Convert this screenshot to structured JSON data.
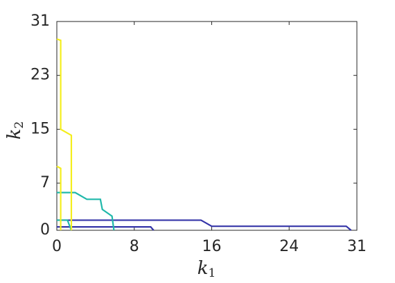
{
  "chart_data": {
    "type": "line",
    "xlabel": {
      "base": "k",
      "sub": "1"
    },
    "ylabel": {
      "base": "k",
      "sub": "2"
    },
    "xlim": [
      0,
      31
    ],
    "ylim": [
      0,
      31
    ],
    "xticks": [
      0,
      8,
      16,
      24,
      31
    ],
    "yticks": [
      0,
      7,
      15,
      23,
      31
    ],
    "series": [
      {
        "color": "#3434a8",
        "x": [
          0,
          9.7,
          10.0
        ],
        "values": [
          0.5,
          0.5,
          0
        ]
      },
      {
        "color": "#3434a8",
        "x": [
          0,
          14.9,
          16.0,
          29.9,
          30.4
        ],
        "values": [
          1.5,
          1.5,
          0.6,
          0.6,
          0
        ]
      },
      {
        "color": "#1fb8aa",
        "x": [
          0,
          1.1,
          1.5
        ],
        "values": [
          1.5,
          1.5,
          0
        ]
      },
      {
        "color": "#1fb8aa",
        "x": [
          0,
          1.9,
          3.1,
          4.5,
          4.7,
          5.7,
          5.9
        ],
        "values": [
          5.6,
          5.6,
          4.6,
          4.6,
          3.1,
          2.1,
          0
        ]
      },
      {
        "color": "#f4ee1c",
        "x": [
          0,
          0.4,
          0.4,
          1.5,
          1.5
        ],
        "values": [
          28.4,
          28.2,
          15.0,
          14.1,
          0
        ]
      },
      {
        "color": "#f4ee1c",
        "x": [
          0,
          0.4,
          0.4
        ],
        "values": [
          9.5,
          9.2,
          0
        ]
      }
    ]
  }
}
